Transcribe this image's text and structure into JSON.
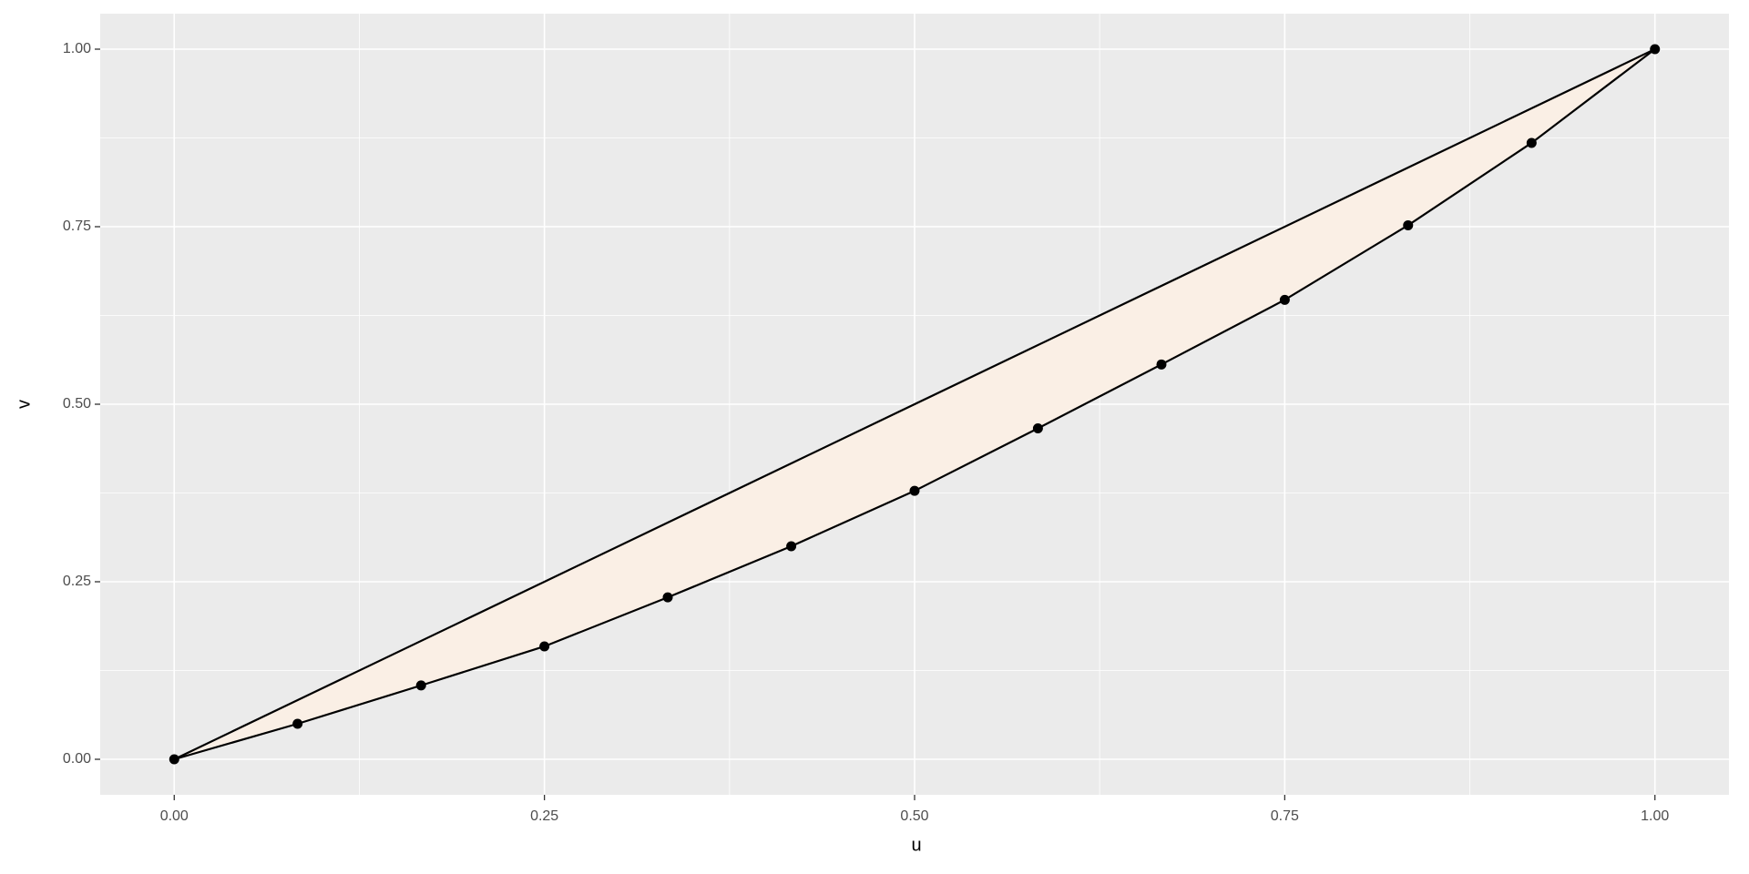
{
  "chart_data": {
    "type": "line",
    "xlabel": "u",
    "ylabel": "v",
    "xlim": [
      -0.05,
      1.05
    ],
    "ylim": [
      -0.05,
      1.05
    ],
    "xticks": [
      {
        "value": 0,
        "label": "0.00"
      },
      {
        "value": 0.25,
        "label": "0.25"
      },
      {
        "value": 0.5,
        "label": "0.50"
      },
      {
        "value": 0.75,
        "label": "0.75"
      },
      {
        "value": 1,
        "label": "1.00"
      }
    ],
    "yticks": [
      {
        "value": 0,
        "label": "0.00"
      },
      {
        "value": 0.25,
        "label": "0.25"
      },
      {
        "value": 0.5,
        "label": "0.50"
      },
      {
        "value": 0.75,
        "label": "0.75"
      },
      {
        "value": 1,
        "label": "1.00"
      }
    ],
    "grid": true,
    "fill": "#faefe5",
    "series": [
      {
        "color": "#000000",
        "markers": false,
        "x": [
          0,
          1
        ],
        "values": [
          0,
          1
        ]
      },
      {
        "color": "#000000",
        "markers": true,
        "x": [
          0,
          0.0833,
          0.1667,
          0.25,
          0.3333,
          0.4167,
          0.5,
          0.5833,
          0.6667,
          0.75,
          0.8333,
          0.9167,
          1
        ],
        "values": [
          0,
          0.05,
          0.104,
          0.159,
          0.228,
          0.3,
          0.378,
          0.466,
          0.556,
          0.647,
          0.752,
          0.868,
          1
        ]
      }
    ]
  }
}
